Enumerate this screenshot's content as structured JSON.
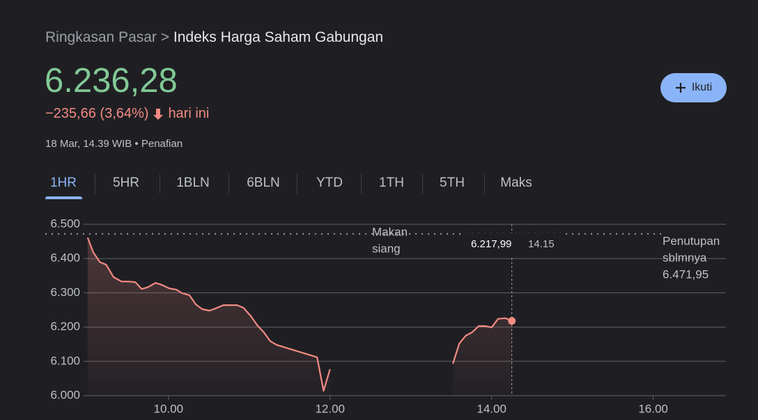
{
  "breadcrumb": {
    "parent": "Ringkasan Pasar",
    "separator": ">",
    "current": "Indeks Harga Saham Gabungan"
  },
  "price": "6.236,28",
  "change": "−235,66 (3,64%)",
  "change_suffix": "hari ini",
  "timestamp": "18 Mar, 14.39 WIB",
  "timestamp_separator": "•",
  "disclaimer": "Penafian",
  "follow_button": "Ikuti",
  "tabs": [
    "1HR",
    "5HR",
    "1BLN",
    "6BLN",
    "YTD",
    "1TH",
    "5TH",
    "Maks"
  ],
  "active_tab": 0,
  "chart_data": {
    "type": "line",
    "color": "#f28b82",
    "x": [
      9.0,
      9.07,
      9.15,
      9.23,
      9.32,
      9.42,
      9.51,
      9.59,
      9.67,
      9.75,
      9.84,
      9.92,
      10.01,
      10.1,
      10.17,
      10.26,
      10.34,
      10.42,
      10.51,
      10.6,
      10.68,
      10.77,
      10.85,
      10.93,
      11.02,
      11.1,
      11.18,
      11.26,
      11.34,
      11.84,
      11.92,
      12.0,
      null,
      13.52,
      13.6,
      13.68,
      13.76,
      13.84,
      13.92,
      14.0,
      14.08,
      14.17,
      14.25
    ],
    "values": [
      6461,
      6418,
      6390,
      6382,
      6346,
      6333,
      6333,
      6331,
      6311,
      6317,
      6329,
      6323,
      6313,
      6309,
      6299,
      6293,
      6266,
      6252,
      6248,
      6256,
      6264,
      6264,
      6264,
      6256,
      6232,
      6205,
      6185,
      6159,
      6148,
      6112,
      6014,
      6077,
      null,
      6093,
      6152,
      6175,
      6185,
      6203,
      6203,
      6199,
      6224,
      6226,
      6217.99
    ],
    "xlim": [
      8.95,
      16.9
    ],
    "xticks": [
      {
        "value": 10,
        "label": "10.00"
      },
      {
        "value": 12,
        "label": "12.00"
      },
      {
        "value": 14,
        "label": "14.00"
      },
      {
        "value": 16,
        "label": "16.00"
      }
    ],
    "ylim": [
      6000,
      6500
    ],
    "yticks": [
      {
        "value": 6000,
        "label": "6.000"
      },
      {
        "value": 6100,
        "label": "6.100"
      },
      {
        "value": 6200,
        "label": "6.200"
      },
      {
        "value": 6300,
        "label": "6.300"
      },
      {
        "value": 6400,
        "label": "6.400"
      },
      {
        "value": 6500,
        "label": "6.500"
      }
    ],
    "grid": true,
    "lunch_label": [
      "Makan",
      "siang"
    ],
    "previous_close": {
      "label": [
        "Penutupan",
        "sblmnya"
      ],
      "value": 6471.95,
      "value_label": "6.471,95"
    },
    "tooltip": {
      "value_label": "6.217,99",
      "time": "14.15"
    }
  }
}
